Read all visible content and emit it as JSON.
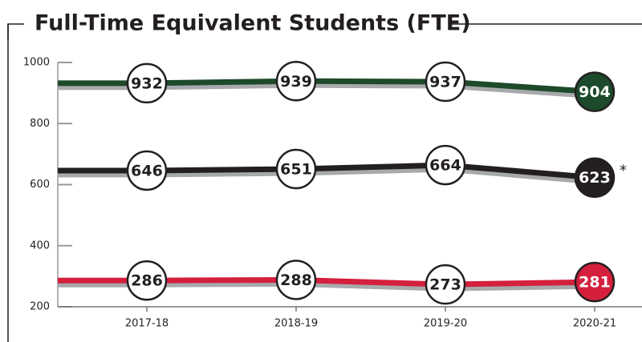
{
  "chart_data": {
    "type": "line",
    "title": "Full-Time Equivalent Students (FTE)",
    "categories": [
      "2017-18",
      "2018-19",
      "2019-20",
      "2020-21"
    ],
    "series": [
      {
        "color": "#1d4a2a",
        "values": [
          932,
          939,
          937,
          904
        ]
      },
      {
        "color": "#231f20",
        "values": [
          646,
          651,
          664,
          623
        ]
      },
      {
        "color": "#d41f3d",
        "values": [
          286,
          288,
          273,
          281
        ]
      }
    ],
    "annotation": "*",
    "ylim": [
      200,
      1000
    ],
    "yticks": [
      200,
      400,
      600,
      800,
      1000
    ]
  }
}
